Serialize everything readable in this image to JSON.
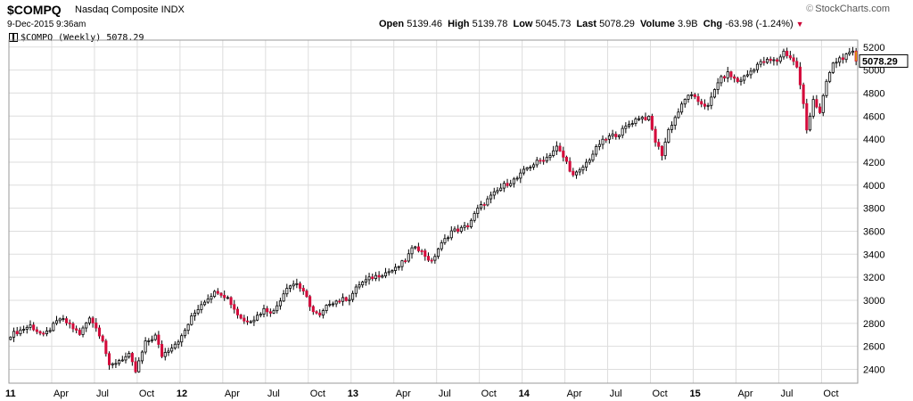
{
  "header": {
    "ticker": "$COMPQ",
    "company": "Nasdaq Composite INDX",
    "datetime": "9-Dec-2015 9:36am",
    "brand": "StockCharts.com",
    "brand_icon": "copyright-icon",
    "open_label": "Open",
    "open_value": "5139.46",
    "high_label": "High",
    "high_value": "5139.78",
    "low_label": "Low",
    "low_value": "5045.73",
    "last_label": "Last",
    "last_value": "5078.29",
    "volume_label": "Volume",
    "volume_value": "3.9B",
    "chg_label": "Chg",
    "chg_value": "-63.98 (-1.24%)",
    "chg_arrow_icon": "triangle-down-icon"
  },
  "legend": {
    "text": "$COMPQ (Weekly) 5078.29"
  },
  "chart_data": {
    "type": "candlestick",
    "interval": "weekly",
    "ylim": [
      2280,
      5260
    ],
    "y_ticks": [
      2400,
      2600,
      2800,
      3000,
      3200,
      3400,
      3600,
      3800,
      4000,
      4200,
      4400,
      4600,
      4800,
      5000,
      5200
    ],
    "x_ticks": [
      {
        "label": "11",
        "week": 0,
        "bold": true
      },
      {
        "label": "Apr",
        "week": 13
      },
      {
        "label": "Jul",
        "week": 26
      },
      {
        "label": "Oct",
        "week": 39
      },
      {
        "label": "12",
        "week": 52,
        "bold": true
      },
      {
        "label": "Apr",
        "week": 65
      },
      {
        "label": "Jul",
        "week": 78
      },
      {
        "label": "Oct",
        "week": 91
      },
      {
        "label": "13",
        "week": 104,
        "bold": true
      },
      {
        "label": "Apr",
        "week": 117
      },
      {
        "label": "Jul",
        "week": 130
      },
      {
        "label": "Oct",
        "week": 143
      },
      {
        "label": "14",
        "week": 156,
        "bold": true
      },
      {
        "label": "Apr",
        "week": 169
      },
      {
        "label": "Jul",
        "week": 182
      },
      {
        "label": "Oct",
        "week": 195
      },
      {
        "label": "15",
        "week": 208,
        "bold": true
      },
      {
        "label": "Apr",
        "week": 221
      },
      {
        "label": "Jul",
        "week": 234
      },
      {
        "label": "Oct",
        "week": 247
      }
    ],
    "total_weeks": 258,
    "close_anchors": [
      [
        0,
        2700
      ],
      [
        6,
        2780
      ],
      [
        10,
        2690
      ],
      [
        15,
        2840
      ],
      [
        18,
        2790
      ],
      [
        21,
        2700
      ],
      [
        24,
        2860
      ],
      [
        28,
        2660
      ],
      [
        30,
        2420
      ],
      [
        33,
        2480
      ],
      [
        36,
        2520
      ],
      [
        38,
        2380
      ],
      [
        41,
        2630
      ],
      [
        44,
        2690
      ],
      [
        46,
        2520
      ],
      [
        49,
        2600
      ],
      [
        52,
        2680
      ],
      [
        55,
        2850
      ],
      [
        58,
        2970
      ],
      [
        61,
        3050
      ],
      [
        63,
        3080
      ],
      [
        66,
        3020
      ],
      [
        69,
        2880
      ],
      [
        71,
        2820
      ],
      [
        74,
        2840
      ],
      [
        77,
        2920
      ],
      [
        80,
        2900
      ],
      [
        84,
        3120
      ],
      [
        87,
        3150
      ],
      [
        90,
        3020
      ],
      [
        92,
        2900
      ],
      [
        94,
        2860
      ],
      [
        97,
        2980
      ],
      [
        100,
        3000
      ],
      [
        103,
        3020
      ],
      [
        106,
        3140
      ],
      [
        110,
        3200
      ],
      [
        114,
        3240
      ],
      [
        117,
        3270
      ],
      [
        120,
        3350
      ],
      [
        123,
        3480
      ],
      [
        125,
        3420
      ],
      [
        128,
        3330
      ],
      [
        130,
        3450
      ],
      [
        134,
        3600
      ],
      [
        137,
        3620
      ],
      [
        139,
        3650
      ],
      [
        142,
        3790
      ],
      [
        146,
        3900
      ],
      [
        150,
        4000
      ],
      [
        154,
        4060
      ],
      [
        157,
        4150
      ],
      [
        160,
        4200
      ],
      [
        163,
        4240
      ],
      [
        166,
        4330
      ],
      [
        169,
        4200
      ],
      [
        171,
        4080
      ],
      [
        173,
        4120
      ],
      [
        176,
        4230
      ],
      [
        179,
        4360
      ],
      [
        182,
        4420
      ],
      [
        185,
        4450
      ],
      [
        188,
        4530
      ],
      [
        191,
        4590
      ],
      [
        194,
        4580
      ],
      [
        196,
        4380
      ],
      [
        198,
        4270
      ],
      [
        200,
        4480
      ],
      [
        203,
        4640
      ],
      [
        206,
        4790
      ],
      [
        209,
        4730
      ],
      [
        212,
        4680
      ],
      [
        215,
        4900
      ],
      [
        218,
        4970
      ],
      [
        221,
        4900
      ],
      [
        224,
        4960
      ],
      [
        227,
        5050
      ],
      [
        230,
        5080
      ],
      [
        233,
        5080
      ],
      [
        235,
        5160
      ],
      [
        237,
        5110
      ],
      [
        239,
        5030
      ],
      [
        241,
        4700
      ],
      [
        242,
        4480
      ],
      [
        244,
        4750
      ],
      [
        246,
        4620
      ],
      [
        248,
        4900
      ],
      [
        250,
        5050
      ],
      [
        252,
        5100
      ],
      [
        254,
        5120
      ],
      [
        256,
        5150
      ],
      [
        257,
        5078
      ]
    ],
    "last_close": 5078.29,
    "colors": {
      "up": "#ffffff",
      "down": "#d40b3b",
      "wick": "#000000",
      "last_bar": "#e0b000",
      "grid": "#dddddd"
    }
  }
}
